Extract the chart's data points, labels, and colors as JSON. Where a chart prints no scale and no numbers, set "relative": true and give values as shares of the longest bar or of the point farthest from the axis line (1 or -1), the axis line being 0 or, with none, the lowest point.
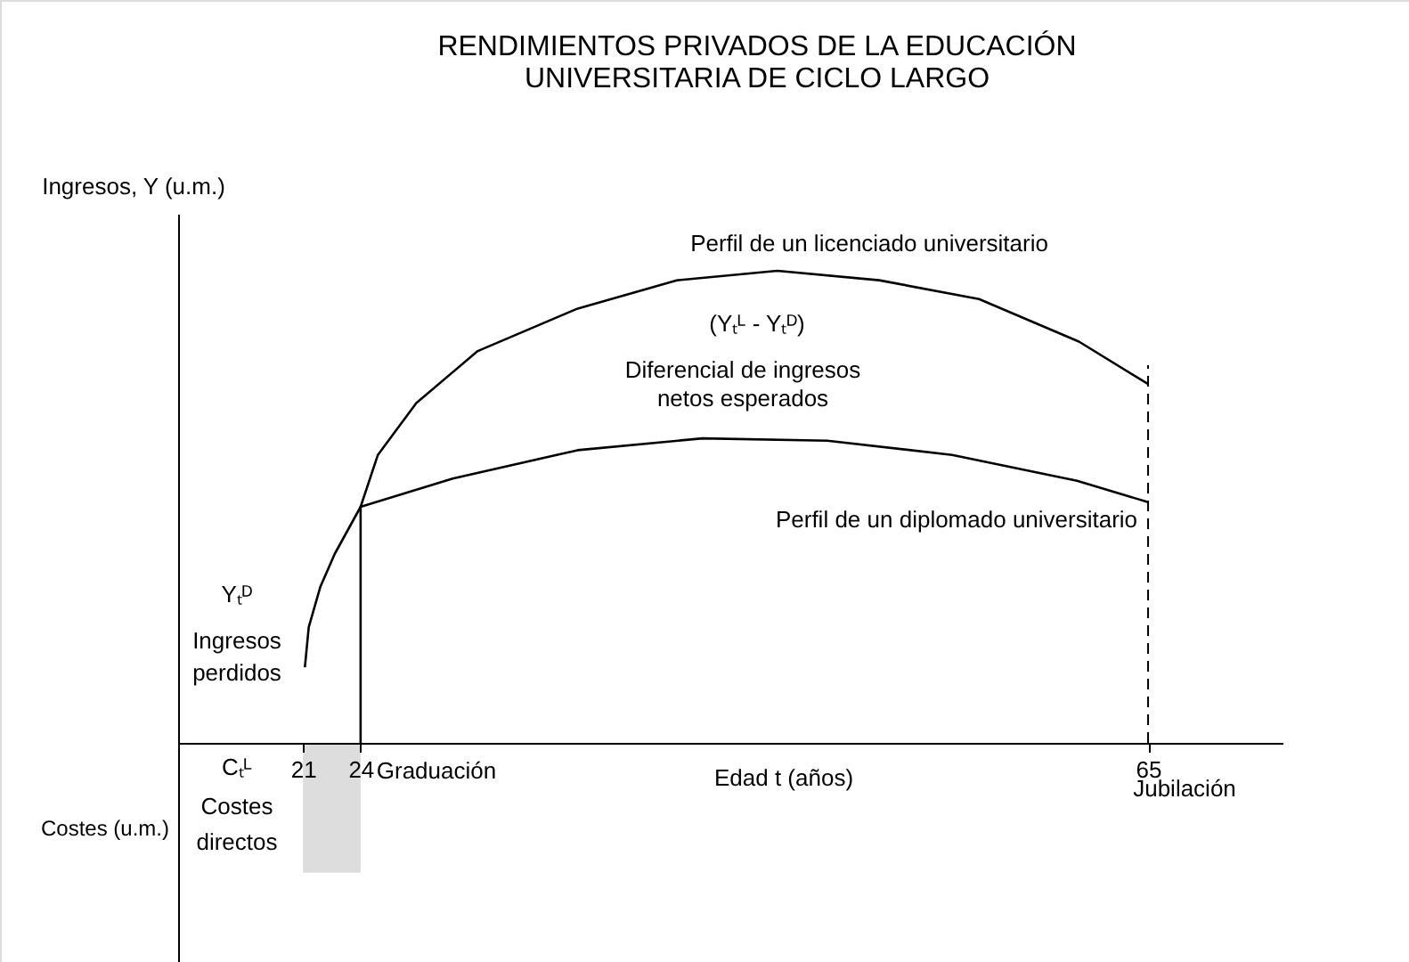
{
  "chart_data": {
    "type": "line",
    "title": "RENDIMIENTOS PRIVADOS DE LA EDUCACIÓN\nUNIVERSITARIA DE CICLO LARGO",
    "xlabel": "Edad t (años)",
    "ylabel": "Ingresos, Y (u.m.)",
    "relative": true,
    "xlim": [
      14.5,
      72
    ],
    "xticks": [
      21,
      24,
      65
    ],
    "series": [
      {
        "color": "#000000",
        "x": [
          21.1,
          21.3,
          21.9,
          22.65,
          24,
          28.8,
          35.3,
          41.8,
          48.3,
          54.8,
          61.3,
          65
        ],
        "values": [
          0.16,
          0.245,
          0.33,
          0.4,
          0.5,
          0.56,
          0.62,
          0.645,
          0.64,
          0.61,
          0.555,
          0.51
        ]
      },
      {
        "color": "#000000",
        "x": [
          24,
          24,
          24.9,
          26.9,
          30.1,
          35.3,
          40.5,
          45.7,
          51,
          56.2,
          61.4,
          65
        ],
        "values": [
          0,
          0.5,
          0.61,
          0.72,
          0.83,
          0.92,
          0.98,
          1.0,
          0.98,
          0.94,
          0.85,
          0.76
        ]
      },
      {
        "type": "bar",
        "color": "#dddddd",
        "x": [
          22.5
        ],
        "values": [
          -0.275
        ]
      }
    ],
    "ref_lines": [
      {
        "axis": "x",
        "value": 65,
        "line_style": "dashed",
        "color": "#000000"
      }
    ],
    "annotations": [
      "Perfil de un licenciado universitario",
      "(Yₜᴸ - Yₜᴰ)",
      "Diferencial de ingresos",
      "netos esperados",
      "Perfil de un diplomado universitario",
      "Yₜᴰ",
      "Ingresos",
      "perdidos",
      "Cₜᴸ",
      "Costes",
      "directos",
      "Graduación",
      "Jubilación",
      "Costes (u.m.)"
    ]
  }
}
